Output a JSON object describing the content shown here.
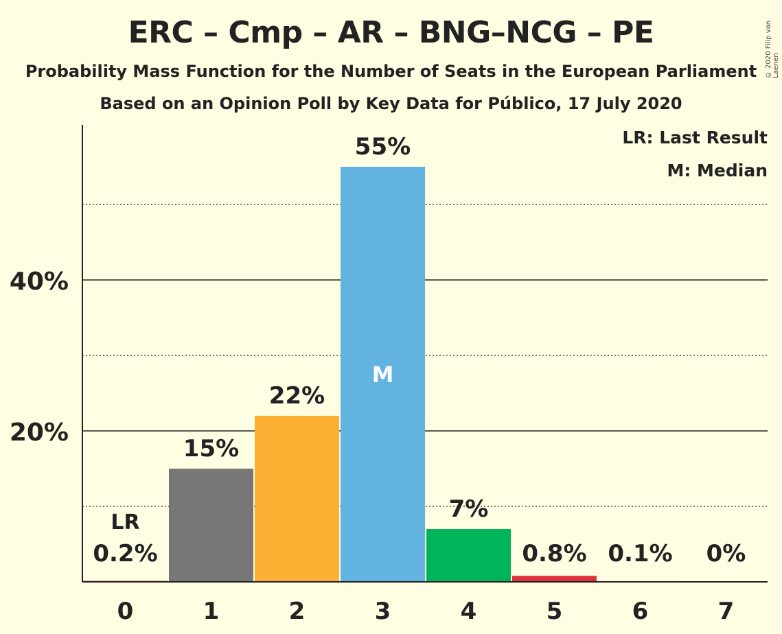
{
  "header": {
    "title": "ERC – Cmp – AR – BNG–NCG – PE",
    "subtitle": "Probability Mass Function for the Number of Seats in the European Parliament",
    "subtitle2": "Based on an Opinion Poll by Key Data for Público, 17 July 2020",
    "copyright": "© 2020 Filip van Laenen"
  },
  "legend": {
    "last_result": "LR: Last Result",
    "median": "M: Median"
  },
  "chart_data": {
    "type": "bar",
    "categories": [
      "0",
      "1",
      "2",
      "3",
      "4",
      "5",
      "6",
      "7"
    ],
    "values": [
      0.2,
      15,
      22,
      55,
      7,
      0.8,
      0.1,
      0
    ],
    "value_labels": [
      "0.2%",
      "15%",
      "22%",
      "55%",
      "7%",
      "0.8%",
      "0.1%",
      "0%"
    ],
    "colors": [
      "#f7a8a8",
      "#777777",
      "#fbb034",
      "#62b3df",
      "#00b45a",
      "#e0303a",
      "#999999",
      "#999999"
    ],
    "ylim": [
      0,
      60
    ],
    "yticks": [
      20,
      40
    ],
    "ytick_labels": [
      "20%",
      "40%"
    ],
    "minor_gridlines": [
      10,
      30,
      50
    ],
    "last_result_index": 0,
    "last_result_label": "LR",
    "median_index": 3,
    "median_label": "M",
    "legend_position": "top-right"
  }
}
